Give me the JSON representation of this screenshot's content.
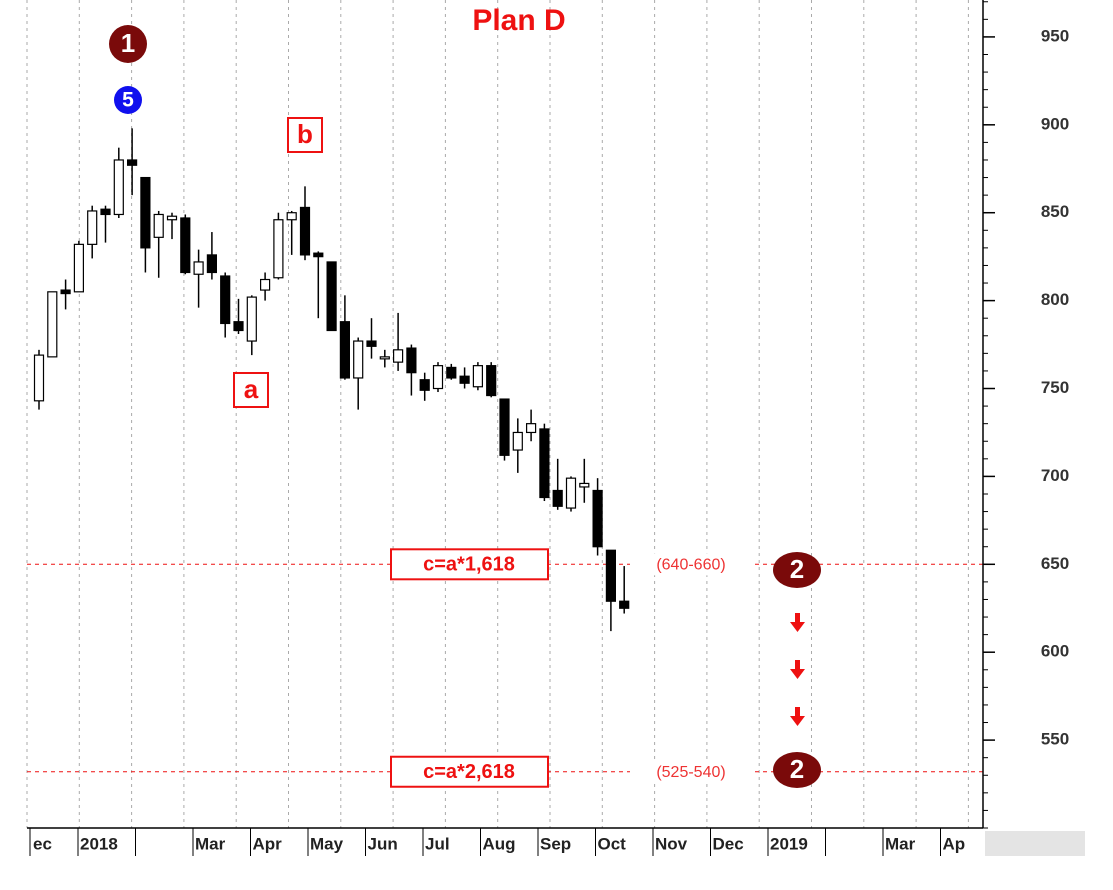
{
  "chart_data": {
    "type": "candlestick",
    "title": "Plan D",
    "categories": [
      null,
      null,
      null,
      null,
      null,
      null,
      null,
      null,
      null,
      null,
      null,
      null,
      null,
      null,
      null,
      null,
      null,
      null,
      null,
      null,
      null,
      null,
      null,
      null,
      null,
      null,
      null,
      null,
      null,
      null,
      null,
      null,
      null,
      null,
      null,
      null,
      null,
      null,
      null,
      null,
      null,
      null,
      null,
      null,
      null
    ],
    "open": [
      743,
      768,
      806,
      805,
      832,
      852,
      849,
      880,
      870,
      836,
      846,
      847,
      815,
      826,
      814,
      788,
      777,
      806,
      813,
      846,
      853,
      827,
      822,
      788,
      756,
      777,
      767,
      765,
      773,
      755,
      750,
      762,
      757,
      751,
      763,
      744,
      715,
      725,
      727,
      692,
      682,
      694,
      692,
      658,
      629
    ],
    "high": [
      772,
      805,
      812,
      834,
      854,
      854,
      887,
      898,
      870,
      851,
      850,
      849,
      829,
      839,
      816,
      801,
      803,
      816,
      850,
      851,
      865,
      828,
      822,
      803,
      779,
      790,
      772,
      793,
      775,
      759,
      765,
      764,
      762,
      765,
      765,
      744,
      733,
      738,
      730,
      710,
      700,
      710,
      699,
      658,
      649
    ],
    "low": [
      738,
      768,
      795,
      805,
      824,
      833,
      847,
      860,
      816,
      813,
      835,
      815,
      796,
      812,
      779,
      781,
      769,
      800,
      812,
      826,
      823,
      790,
      783,
      755,
      738,
      767,
      762,
      760,
      746,
      743,
      748,
      755,
      750,
      749,
      745,
      709,
      702,
      720,
      686,
      681,
      680,
      685,
      655,
      612,
      622
    ],
    "close": [
      769,
      805,
      804,
      832,
      851,
      849,
      880,
      877,
      830,
      849,
      848,
      816,
      822,
      816,
      787,
      783,
      802,
      812,
      846,
      850,
      826,
      825,
      783,
      756,
      777,
      774,
      768,
      772,
      759,
      749,
      763,
      756,
      753,
      763,
      746,
      712,
      725,
      730,
      688,
      683,
      699,
      696,
      660,
      629,
      625
    ],
    "up_color": "#ffffff",
    "down_color": "#000000",
    "month_labels": [
      "ec",
      "2018",
      null,
      "Mar",
      "Apr",
      "May",
      "Jun",
      "Jul",
      "Aug",
      "Sep",
      "Oct",
      "Nov",
      "Dec",
      "2019",
      null,
      "Mar",
      "Ap"
    ],
    "ylim": [
      500,
      971
    ],
    "yticks": [
      550,
      600,
      650,
      700,
      750,
      800,
      850,
      900,
      950
    ],
    "levels": [
      {
        "value": 650,
        "label": "c=a*1,618",
        "range": "(640-660)"
      },
      {
        "value": 532,
        "label": "c=a*2,618",
        "range": "(525-540)"
      }
    ],
    "annotations": {
      "wave_1": "1",
      "wave_5": "5",
      "b": "b",
      "a": "a",
      "wave_2_upper": "2",
      "wave_2_lower": "2"
    }
  }
}
